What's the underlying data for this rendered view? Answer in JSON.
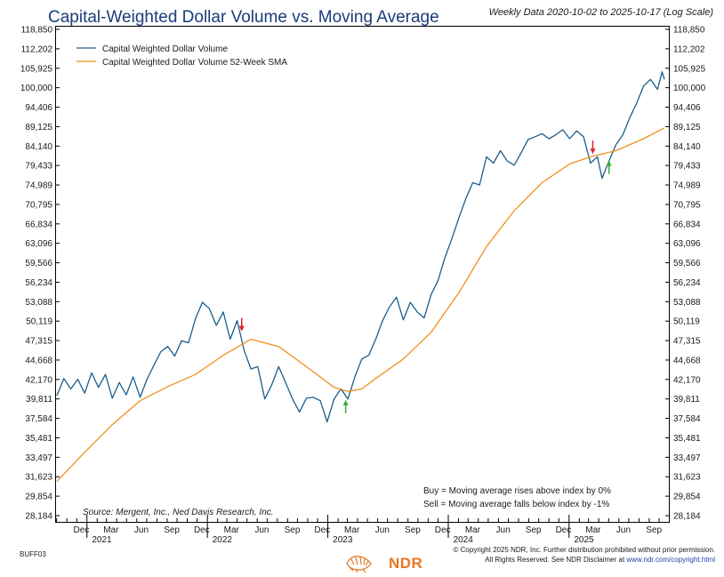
{
  "chart_data": {
    "type": "line",
    "title": "Capital-Weighted Dollar Volume vs. Moving Average",
    "subtitle": "Weekly Data 2020-10-02 to 2025-10-17 (Log Scale)",
    "scale": "log",
    "ylim": [
      28184,
      118850
    ],
    "y_ticks": [
      "118,850",
      "112,202",
      "105,925",
      "100,000",
      "94,406",
      "89,125",
      "84,140",
      "79,433",
      "74,989",
      "70,795",
      "66,834",
      "63,096",
      "59,566",
      "56,234",
      "53,088",
      "50,119",
      "47,315",
      "44,668",
      "42,170",
      "39,811",
      "37,584",
      "35,481",
      "33,497",
      "31,623",
      "29,854",
      "28,184"
    ],
    "x_month_labels": [
      "Dec",
      "Mar",
      "Jun",
      "Sep",
      "Dec",
      "Mar",
      "Jun",
      "Sep",
      "Dec",
      "Mar",
      "Jun",
      "Sep",
      "Dec",
      "Mar",
      "Jun",
      "Sep",
      "Dec",
      "Mar",
      "Jun",
      "Sep"
    ],
    "x_year_labels": [
      "2021",
      "2022",
      "2023",
      "2024",
      "2025"
    ],
    "x_range": [
      "2020-10-02",
      "2025-10-17"
    ],
    "grid": false,
    "legend_position": "top-left",
    "series": [
      {
        "name": "Capital Weighted Dollar Volume",
        "color": "#1b5e8c",
        "points": [
          [
            "2020-10-02",
            40200
          ],
          [
            "2020-10-23",
            42300
          ],
          [
            "2020-11-13",
            41000
          ],
          [
            "2020-12-04",
            42200
          ],
          [
            "2020-12-25",
            40500
          ],
          [
            "2021-01-15",
            43000
          ],
          [
            "2021-02-05",
            41200
          ],
          [
            "2021-02-26",
            42800
          ],
          [
            "2021-03-19",
            39900
          ],
          [
            "2021-04-09",
            41800
          ],
          [
            "2021-04-30",
            40300
          ],
          [
            "2021-05-21",
            42500
          ],
          [
            "2021-06-11",
            40000
          ],
          [
            "2021-07-02",
            42200
          ],
          [
            "2021-07-23",
            44000
          ],
          [
            "2021-08-13",
            45800
          ],
          [
            "2021-09-03",
            46500
          ],
          [
            "2021-09-24",
            45200
          ],
          [
            "2021-10-15",
            47300
          ],
          [
            "2021-11-05",
            47000
          ],
          [
            "2021-11-26",
            50500
          ],
          [
            "2021-12-17",
            53000
          ],
          [
            "2022-01-07",
            52000
          ],
          [
            "2022-01-28",
            49500
          ],
          [
            "2022-02-18",
            51500
          ],
          [
            "2022-03-11",
            47500
          ],
          [
            "2022-04-01",
            50200
          ],
          [
            "2022-04-22",
            46000
          ],
          [
            "2022-05-13",
            43500
          ],
          [
            "2022-06-03",
            43800
          ],
          [
            "2022-06-24",
            39800
          ],
          [
            "2022-07-15",
            41500
          ],
          [
            "2022-08-05",
            43800
          ],
          [
            "2022-08-26",
            41800
          ],
          [
            "2022-09-16",
            39800
          ],
          [
            "2022-10-07",
            38300
          ],
          [
            "2022-10-28",
            39900
          ],
          [
            "2022-11-18",
            40000
          ],
          [
            "2022-12-09",
            39600
          ],
          [
            "2022-12-30",
            37200
          ],
          [
            "2023-01-20",
            39800
          ],
          [
            "2023-02-10",
            41000
          ],
          [
            "2023-03-03",
            39800
          ],
          [
            "2023-03-24",
            42500
          ],
          [
            "2023-04-14",
            44800
          ],
          [
            "2023-05-05",
            45300
          ],
          [
            "2023-05-26",
            47500
          ],
          [
            "2023-06-16",
            50200
          ],
          [
            "2023-07-07",
            52300
          ],
          [
            "2023-07-28",
            53800
          ],
          [
            "2023-08-18",
            50300
          ],
          [
            "2023-09-08",
            53000
          ],
          [
            "2023-09-29",
            51500
          ],
          [
            "2023-10-20",
            50600
          ],
          [
            "2023-11-10",
            54200
          ],
          [
            "2023-12-01",
            56500
          ],
          [
            "2023-12-22",
            60500
          ],
          [
            "2024-01-12",
            64000
          ],
          [
            "2024-02-02",
            68000
          ],
          [
            "2024-02-23",
            72000
          ],
          [
            "2024-03-15",
            75500
          ],
          [
            "2024-04-05",
            75000
          ],
          [
            "2024-04-26",
            81500
          ],
          [
            "2024-05-17",
            80000
          ],
          [
            "2024-06-07",
            83000
          ],
          [
            "2024-06-28",
            80500
          ],
          [
            "2024-07-19",
            79500
          ],
          [
            "2024-08-09",
            82500
          ],
          [
            "2024-08-30",
            85800
          ],
          [
            "2024-09-20",
            86500
          ],
          [
            "2024-10-11",
            87300
          ],
          [
            "2024-11-01",
            86000
          ],
          [
            "2024-11-22",
            87000
          ],
          [
            "2024-12-13",
            88300
          ],
          [
            "2025-01-03",
            86000
          ],
          [
            "2025-01-24",
            88000
          ],
          [
            "2025-02-14",
            86500
          ],
          [
            "2025-03-07",
            80000
          ],
          [
            "2025-03-28",
            81500
          ],
          [
            "2025-04-11",
            76500
          ],
          [
            "2025-05-02",
            80500
          ],
          [
            "2025-05-23",
            84500
          ],
          [
            "2025-06-13",
            87000
          ],
          [
            "2025-07-04",
            91500
          ],
          [
            "2025-07-25",
            95500
          ],
          [
            "2025-08-15",
            100500
          ],
          [
            "2025-09-05",
            102500
          ],
          [
            "2025-09-26",
            99500
          ],
          [
            "2025-10-10",
            104800
          ],
          [
            "2025-10-17",
            102500
          ]
        ]
      },
      {
        "name": "Capital Weighted Dollar Volume 52-Week SMA",
        "color": "#f0901e",
        "points": [
          [
            "2020-10-02",
            31200
          ],
          [
            "2020-12-25",
            34000
          ],
          [
            "2021-03-19",
            36900
          ],
          [
            "2021-06-11",
            39600
          ],
          [
            "2021-09-03",
            41300
          ],
          [
            "2021-11-26",
            42800
          ],
          [
            "2022-02-18",
            45300
          ],
          [
            "2022-05-13",
            47500
          ],
          [
            "2022-08-05",
            46500
          ],
          [
            "2022-10-28",
            43800
          ],
          [
            "2023-01-20",
            41200
          ],
          [
            "2023-03-03",
            40700
          ],
          [
            "2023-04-14",
            41000
          ],
          [
            "2023-05-26",
            42300
          ],
          [
            "2023-08-18",
            44800
          ],
          [
            "2023-11-10",
            48500
          ],
          [
            "2024-02-02",
            54500
          ],
          [
            "2024-04-26",
            62500
          ],
          [
            "2024-07-19",
            69500
          ],
          [
            "2024-10-11",
            75500
          ],
          [
            "2025-01-03",
            79800
          ],
          [
            "2025-03-07",
            81500
          ],
          [
            "2025-05-23",
            83000
          ],
          [
            "2025-08-15",
            86000
          ],
          [
            "2025-10-17",
            88800
          ]
        ]
      }
    ],
    "signals": [
      {
        "type": "sell",
        "date": "2022-04-15",
        "value": 48500,
        "color": "#e0202a"
      },
      {
        "type": "buy",
        "date": "2023-02-24",
        "value": 39800,
        "color": "#2fae3a"
      },
      {
        "type": "sell",
        "date": "2025-03-14",
        "value": 82000,
        "color": "#e0202a"
      },
      {
        "type": "buy",
        "date": "2025-05-02",
        "value": 80800,
        "color": "#2fae3a"
      }
    ],
    "annotations": {
      "buy_rule": "Buy = Moving average rises above index by 0%",
      "sell_rule": "Sell = Moving average falls below index by -1%",
      "source": "Source:   Mergent, Inc., Ned Davis Research, Inc."
    }
  },
  "footer": {
    "chart_id": "BUFF03",
    "copyright_line1": "© Copyright 2025 NDR, Inc. Further distribution prohibited without prior permission.",
    "copyright_line2_prefix": "All Rights Reserved. See NDR Disclaimer at ",
    "copyright_link": "www.ndr.com/copyright.html",
    "logo_text": "NDR"
  }
}
